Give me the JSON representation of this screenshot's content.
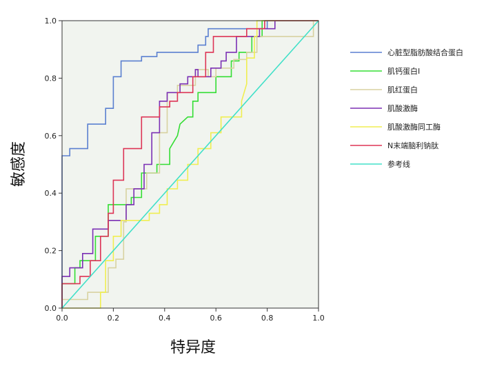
{
  "chart_data": {
    "type": "line",
    "xlabel": "特异度",
    "ylabel": "敏感度",
    "xlim": [
      0,
      1
    ],
    "ylim": [
      0,
      1
    ],
    "x_ticks": [
      "0.0",
      "0.2",
      "0.4",
      "0.6",
      "0.8",
      "1.0"
    ],
    "y_ticks": [
      "0.0",
      "0.2",
      "0.4",
      "0.6",
      "0.8",
      "1.0"
    ],
    "grid": false,
    "legend_position": "right",
    "plot_background": "#f1f4ef",
    "series": [
      {
        "name": "心脏型脂肪酸结合蛋白",
        "color": "#5a7fd0",
        "points": [
          [
            0,
            0
          ],
          [
            0,
            0.53
          ],
          [
            0.03,
            0.53
          ],
          [
            0.03,
            0.555
          ],
          [
            0.1,
            0.555
          ],
          [
            0.1,
            0.64
          ],
          [
            0.17,
            0.64
          ],
          [
            0.17,
            0.695
          ],
          [
            0.2,
            0.695
          ],
          [
            0.2,
            0.805
          ],
          [
            0.23,
            0.805
          ],
          [
            0.23,
            0.86
          ],
          [
            0.31,
            0.86
          ],
          [
            0.31,
            0.875
          ],
          [
            0.37,
            0.875
          ],
          [
            0.37,
            0.89
          ],
          [
            0.53,
            0.89
          ],
          [
            0.53,
            0.915
          ],
          [
            0.56,
            0.915
          ],
          [
            0.56,
            0.945
          ],
          [
            0.57,
            0.945
          ],
          [
            0.57,
            0.972
          ],
          [
            0.8,
            0.972
          ],
          [
            0.8,
            1.0
          ],
          [
            1.0,
            1.0
          ]
        ]
      },
      {
        "name": "肌钙蛋白I",
        "color": "#33dd33",
        "points": [
          [
            0,
            0
          ],
          [
            0,
            0.085
          ],
          [
            0.05,
            0.085
          ],
          [
            0.05,
            0.14
          ],
          [
            0.07,
            0.14
          ],
          [
            0.07,
            0.165
          ],
          [
            0.13,
            0.165
          ],
          [
            0.13,
            0.25
          ],
          [
            0.18,
            0.25
          ],
          [
            0.18,
            0.36
          ],
          [
            0.2,
            0.36
          ],
          [
            0.2,
            0.36
          ],
          [
            0.27,
            0.36
          ],
          [
            0.27,
            0.385
          ],
          [
            0.31,
            0.385
          ],
          [
            0.31,
            0.47
          ],
          [
            0.37,
            0.47
          ],
          [
            0.37,
            0.5
          ],
          [
            0.42,
            0.5
          ],
          [
            0.42,
            0.555
          ],
          [
            0.45,
            0.6
          ],
          [
            0.46,
            0.64
          ],
          [
            0.49,
            0.665
          ],
          [
            0.51,
            0.665
          ],
          [
            0.51,
            0.72
          ],
          [
            0.53,
            0.72
          ],
          [
            0.53,
            0.75
          ],
          [
            0.6,
            0.75
          ],
          [
            0.6,
            0.805
          ],
          [
            0.66,
            0.805
          ],
          [
            0.66,
            0.86
          ],
          [
            0.69,
            0.86
          ],
          [
            0.69,
            0.89
          ],
          [
            0.74,
            0.89
          ],
          [
            0.74,
            0.945
          ],
          [
            0.78,
            0.945
          ],
          [
            0.78,
            1.0
          ],
          [
            1.0,
            1.0
          ]
        ]
      },
      {
        "name": "肌红蛋白",
        "color": "#d8d2a0",
        "points": [
          [
            0,
            0
          ],
          [
            0,
            0.03
          ],
          [
            0.1,
            0.03
          ],
          [
            0.1,
            0.055
          ],
          [
            0.18,
            0.055
          ],
          [
            0.18,
            0.14
          ],
          [
            0.21,
            0.14
          ],
          [
            0.21,
            0.17
          ],
          [
            0.24,
            0.17
          ],
          [
            0.24,
            0.3
          ],
          [
            0.25,
            0.3
          ],
          [
            0.25,
            0.415
          ],
          [
            0.33,
            0.415
          ],
          [
            0.33,
            0.47
          ],
          [
            0.38,
            0.47
          ],
          [
            0.38,
            0.61
          ],
          [
            0.41,
            0.61
          ],
          [
            0.41,
            0.75
          ],
          [
            0.45,
            0.75
          ],
          [
            0.45,
            0.775
          ],
          [
            0.52,
            0.775
          ],
          [
            0.52,
            0.83
          ],
          [
            0.57,
            0.83
          ],
          [
            0.57,
            0.805
          ],
          [
            0.6,
            0.805
          ],
          [
            0.6,
            0.835
          ],
          [
            0.67,
            0.835
          ],
          [
            0.67,
            0.865
          ],
          [
            0.72,
            0.865
          ],
          [
            0.72,
            0.89
          ],
          [
            0.76,
            0.89
          ],
          [
            0.76,
            0.945
          ],
          [
            0.98,
            0.945
          ],
          [
            0.98,
            1.0
          ],
          [
            1.0,
            1.0
          ]
        ]
      },
      {
        "name": "肌酸激酶",
        "color": "#7b2fb4",
        "points": [
          [
            0,
            0
          ],
          [
            0,
            0.11
          ],
          [
            0.03,
            0.11
          ],
          [
            0.03,
            0.14
          ],
          [
            0.08,
            0.14
          ],
          [
            0.08,
            0.19
          ],
          [
            0.12,
            0.19
          ],
          [
            0.12,
            0.275
          ],
          [
            0.18,
            0.275
          ],
          [
            0.18,
            0.305
          ],
          [
            0.21,
            0.305
          ],
          [
            0.21,
            0.305
          ],
          [
            0.25,
            0.305
          ],
          [
            0.25,
            0.36
          ],
          [
            0.28,
            0.36
          ],
          [
            0.28,
            0.415
          ],
          [
            0.32,
            0.415
          ],
          [
            0.32,
            0.5
          ],
          [
            0.35,
            0.5
          ],
          [
            0.35,
            0.61
          ],
          [
            0.38,
            0.61
          ],
          [
            0.38,
            0.72
          ],
          [
            0.41,
            0.72
          ],
          [
            0.41,
            0.75
          ],
          [
            0.46,
            0.75
          ],
          [
            0.46,
            0.78
          ],
          [
            0.49,
            0.78
          ],
          [
            0.49,
            0.805
          ],
          [
            0.52,
            0.805
          ],
          [
            0.52,
            0.83
          ],
          [
            0.53,
            0.83
          ],
          [
            0.53,
            0.805
          ],
          [
            0.58,
            0.805
          ],
          [
            0.58,
            0.835
          ],
          [
            0.62,
            0.835
          ],
          [
            0.62,
            0.86
          ],
          [
            0.64,
            0.86
          ],
          [
            0.64,
            0.89
          ],
          [
            0.68,
            0.89
          ],
          [
            0.68,
            0.945
          ],
          [
            0.77,
            0.945
          ],
          [
            0.77,
            0.972
          ],
          [
            0.83,
            0.972
          ],
          [
            0.83,
            1.0
          ],
          [
            1.0,
            1.0
          ]
        ]
      },
      {
        "name": "肌酸激酶同工酶",
        "color": "#f0ee50",
        "points": [
          [
            0,
            0
          ],
          [
            0.15,
            0
          ],
          [
            0.15,
            0.055
          ],
          [
            0.17,
            0.055
          ],
          [
            0.17,
            0.165
          ],
          [
            0.2,
            0.165
          ],
          [
            0.2,
            0.25
          ],
          [
            0.23,
            0.25
          ],
          [
            0.23,
            0.305
          ],
          [
            0.28,
            0.305
          ],
          [
            0.28,
            0.305
          ],
          [
            0.34,
            0.305
          ],
          [
            0.34,
            0.33
          ],
          [
            0.38,
            0.33
          ],
          [
            0.38,
            0.36
          ],
          [
            0.41,
            0.36
          ],
          [
            0.41,
            0.415
          ],
          [
            0.45,
            0.415
          ],
          [
            0.45,
            0.445
          ],
          [
            0.49,
            0.445
          ],
          [
            0.49,
            0.5
          ],
          [
            0.53,
            0.5
          ],
          [
            0.53,
            0.555
          ],
          [
            0.58,
            0.555
          ],
          [
            0.58,
            0.61
          ],
          [
            0.62,
            0.61
          ],
          [
            0.62,
            0.665
          ],
          [
            0.7,
            0.665
          ],
          [
            0.7,
            0.72
          ],
          [
            0.72,
            0.78
          ],
          [
            0.72,
            0.87
          ],
          [
            0.75,
            0.87
          ],
          [
            0.75,
            0.945
          ],
          [
            0.76,
            0.945
          ],
          [
            0.76,
            1.0
          ],
          [
            1.0,
            1.0
          ]
        ]
      },
      {
        "name": "N末端脑利钠肽",
        "color": "#dd3355",
        "points": [
          [
            0,
            0
          ],
          [
            0,
            0.085
          ],
          [
            0.07,
            0.085
          ],
          [
            0.07,
            0.11
          ],
          [
            0.11,
            0.11
          ],
          [
            0.11,
            0.165
          ],
          [
            0.15,
            0.165
          ],
          [
            0.15,
            0.25
          ],
          [
            0.18,
            0.25
          ],
          [
            0.18,
            0.33
          ],
          [
            0.2,
            0.33
          ],
          [
            0.2,
            0.445
          ],
          [
            0.24,
            0.445
          ],
          [
            0.24,
            0.555
          ],
          [
            0.31,
            0.555
          ],
          [
            0.31,
            0.665
          ],
          [
            0.38,
            0.665
          ],
          [
            0.38,
            0.7
          ],
          [
            0.42,
            0.7
          ],
          [
            0.42,
            0.72
          ],
          [
            0.45,
            0.72
          ],
          [
            0.45,
            0.75
          ],
          [
            0.51,
            0.75
          ],
          [
            0.51,
            0.805
          ],
          [
            0.56,
            0.805
          ],
          [
            0.56,
            0.89
          ],
          [
            0.59,
            0.89
          ],
          [
            0.59,
            0.945
          ],
          [
            0.72,
            0.945
          ],
          [
            0.72,
            0.972
          ],
          [
            0.79,
            0.972
          ],
          [
            0.79,
            1.0
          ],
          [
            1.0,
            1.0
          ]
        ]
      },
      {
        "name": "参考线",
        "color": "#40e0c8",
        "points": [
          [
            0,
            0
          ],
          [
            1,
            1
          ]
        ]
      }
    ]
  }
}
